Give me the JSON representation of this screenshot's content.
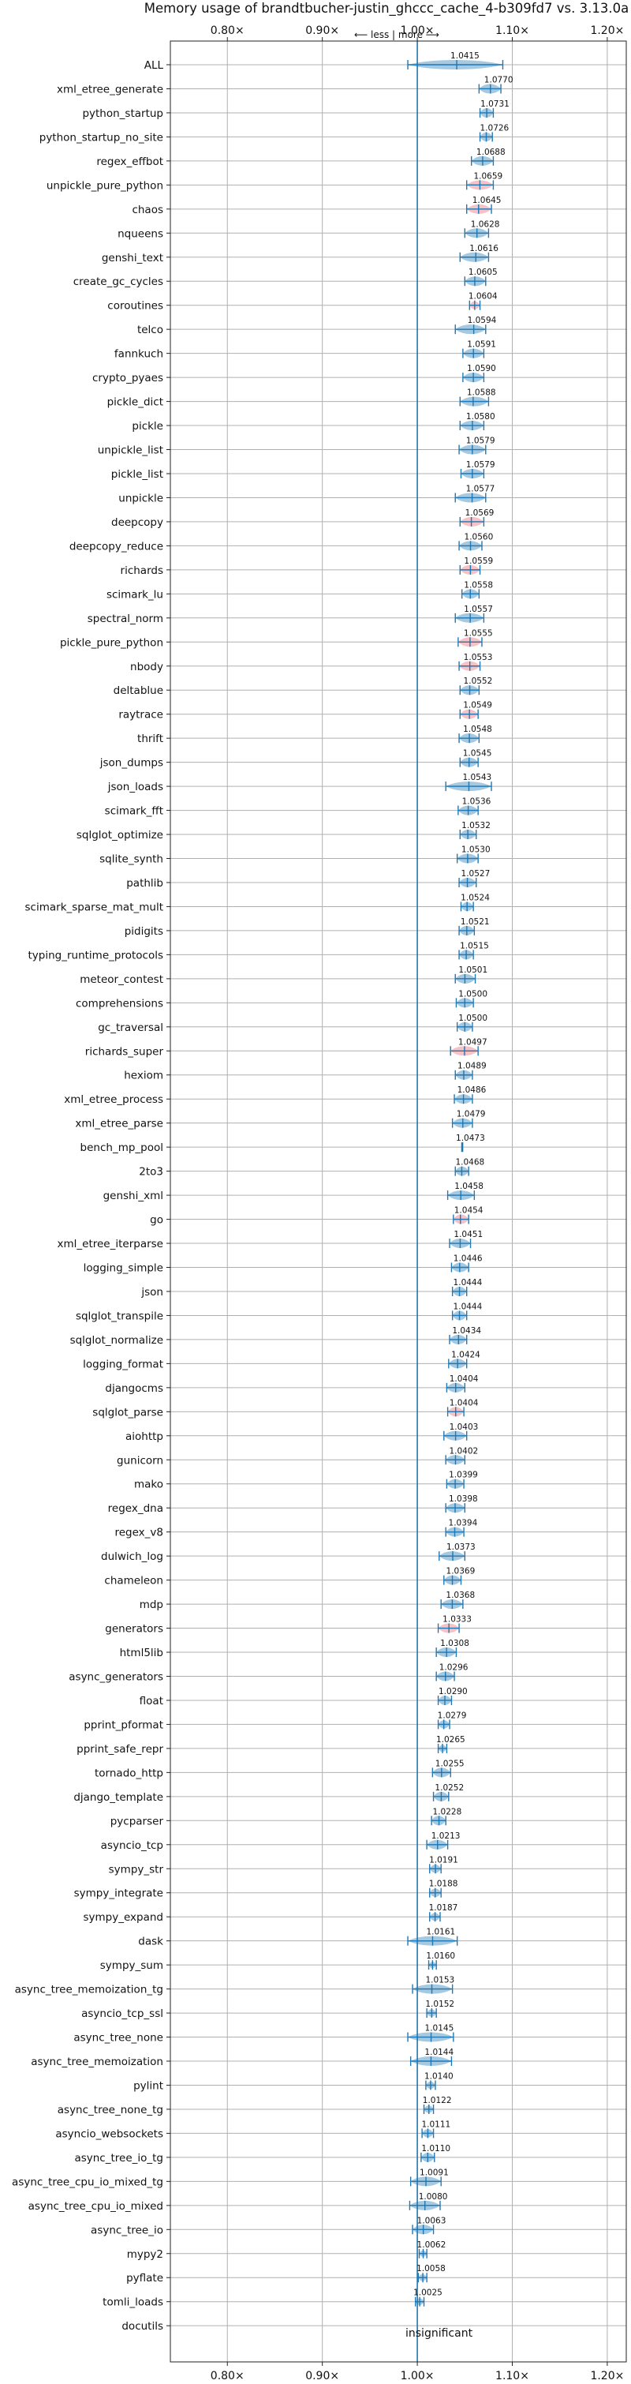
{
  "chart_data": {
    "type": "violin",
    "title": "Memory usage of brandtbucher-justin_ghccc_cache_4-b309fd7 vs. 3.13.0a",
    "direction_label": "⟵ less | more ⟶",
    "xlim": [
      0.74,
      1.22
    ],
    "xticks": [
      0.8,
      0.9,
      1.0,
      1.1,
      1.2
    ],
    "xtick_labels": [
      "0.80×",
      "0.90×",
      "1.00×",
      "1.10×",
      "1.20×"
    ],
    "reference_x": 1.0,
    "grid": true,
    "insignificant_label": "insignificant",
    "colors": {
      "normal": "#1f77b4",
      "highlight": "#e8666e",
      "reference": "#1f77b4"
    },
    "benchmarks": [
      {
        "name": "ALL",
        "value_label": "1.0415",
        "center": 1.0415,
        "lo": 0.99,
        "hi": 1.09,
        "highlight": false
      },
      {
        "name": "xml_etree_generate",
        "value_label": "1.0770",
        "center": 1.077,
        "lo": 1.065,
        "hi": 1.088,
        "highlight": false
      },
      {
        "name": "python_startup",
        "value_label": "1.0731",
        "center": 1.0731,
        "lo": 1.066,
        "hi": 1.08,
        "highlight": false
      },
      {
        "name": "python_startup_no_site",
        "value_label": "1.0726",
        "center": 1.0726,
        "lo": 1.066,
        "hi": 1.079,
        "highlight": false
      },
      {
        "name": "regex_effbot",
        "value_label": "1.0688",
        "center": 1.0688,
        "lo": 1.057,
        "hi": 1.08,
        "highlight": false
      },
      {
        "name": "unpickle_pure_python",
        "value_label": "1.0659",
        "center": 1.0659,
        "lo": 1.052,
        "hi": 1.08,
        "highlight": true
      },
      {
        "name": "chaos",
        "value_label": "1.0645",
        "center": 1.0645,
        "lo": 1.052,
        "hi": 1.078,
        "highlight": true
      },
      {
        "name": "nqueens",
        "value_label": "1.0628",
        "center": 1.0628,
        "lo": 1.05,
        "hi": 1.075,
        "highlight": false
      },
      {
        "name": "genshi_text",
        "value_label": "1.0616",
        "center": 1.0616,
        "lo": 1.045,
        "hi": 1.075,
        "highlight": false
      },
      {
        "name": "create_gc_cycles",
        "value_label": "1.0605",
        "center": 1.0605,
        "lo": 1.05,
        "hi": 1.072,
        "highlight": false
      },
      {
        "name": "coroutines",
        "value_label": "1.0604",
        "center": 1.0604,
        "lo": 1.055,
        "hi": 1.066,
        "highlight": true
      },
      {
        "name": "telco",
        "value_label": "1.0594",
        "center": 1.0594,
        "lo": 1.04,
        "hi": 1.072,
        "highlight": false
      },
      {
        "name": "fannkuch",
        "value_label": "1.0591",
        "center": 1.0591,
        "lo": 1.048,
        "hi": 1.07,
        "highlight": false
      },
      {
        "name": "crypto_pyaes",
        "value_label": "1.0590",
        "center": 1.059,
        "lo": 1.048,
        "hi": 1.07,
        "highlight": false
      },
      {
        "name": "pickle_dict",
        "value_label": "1.0588",
        "center": 1.0588,
        "lo": 1.045,
        "hi": 1.075,
        "highlight": false
      },
      {
        "name": "pickle",
        "value_label": "1.0580",
        "center": 1.058,
        "lo": 1.045,
        "hi": 1.07,
        "highlight": false
      },
      {
        "name": "unpickle_list",
        "value_label": "1.0579",
        "center": 1.0579,
        "lo": 1.044,
        "hi": 1.072,
        "highlight": false
      },
      {
        "name": "pickle_list",
        "value_label": "1.0579",
        "center": 1.0579,
        "lo": 1.046,
        "hi": 1.07,
        "highlight": false
      },
      {
        "name": "unpickle",
        "value_label": "1.0577",
        "center": 1.0577,
        "lo": 1.04,
        "hi": 1.072,
        "highlight": false
      },
      {
        "name": "deepcopy",
        "value_label": "1.0569",
        "center": 1.0569,
        "lo": 1.045,
        "hi": 1.07,
        "highlight": true
      },
      {
        "name": "deepcopy_reduce",
        "value_label": "1.0560",
        "center": 1.056,
        "lo": 1.044,
        "hi": 1.068,
        "highlight": false
      },
      {
        "name": "richards",
        "value_label": "1.0559",
        "center": 1.0559,
        "lo": 1.045,
        "hi": 1.066,
        "highlight": true
      },
      {
        "name": "scimark_lu",
        "value_label": "1.0558",
        "center": 1.0558,
        "lo": 1.047,
        "hi": 1.065,
        "highlight": false
      },
      {
        "name": "spectral_norm",
        "value_label": "1.0557",
        "center": 1.0557,
        "lo": 1.04,
        "hi": 1.07,
        "highlight": false
      },
      {
        "name": "pickle_pure_python",
        "value_label": "1.0555",
        "center": 1.0555,
        "lo": 1.043,
        "hi": 1.068,
        "highlight": true
      },
      {
        "name": "nbody",
        "value_label": "1.0553",
        "center": 1.0553,
        "lo": 1.044,
        "hi": 1.066,
        "highlight": true
      },
      {
        "name": "deltablue",
        "value_label": "1.0552",
        "center": 1.0552,
        "lo": 1.045,
        "hi": 1.065,
        "highlight": false
      },
      {
        "name": "raytrace",
        "value_label": "1.0549",
        "center": 1.0549,
        "lo": 1.045,
        "hi": 1.064,
        "highlight": true
      },
      {
        "name": "thrift",
        "value_label": "1.0548",
        "center": 1.0548,
        "lo": 1.044,
        "hi": 1.065,
        "highlight": false
      },
      {
        "name": "json_dumps",
        "value_label": "1.0545",
        "center": 1.0545,
        "lo": 1.045,
        "hi": 1.064,
        "highlight": false
      },
      {
        "name": "json_loads",
        "value_label": "1.0543",
        "center": 1.0543,
        "lo": 1.03,
        "hi": 1.078,
        "highlight": false
      },
      {
        "name": "scimark_fft",
        "value_label": "1.0536",
        "center": 1.0536,
        "lo": 1.043,
        "hi": 1.064,
        "highlight": false
      },
      {
        "name": "sqlglot_optimize",
        "value_label": "1.0532",
        "center": 1.0532,
        "lo": 1.045,
        "hi": 1.062,
        "highlight": false
      },
      {
        "name": "sqlite_synth",
        "value_label": "1.0530",
        "center": 1.053,
        "lo": 1.042,
        "hi": 1.064,
        "highlight": false
      },
      {
        "name": "pathlib",
        "value_label": "1.0527",
        "center": 1.0527,
        "lo": 1.044,
        "hi": 1.062,
        "highlight": false
      },
      {
        "name": "scimark_sparse_mat_mult",
        "value_label": "1.0524",
        "center": 1.0524,
        "lo": 1.046,
        "hi": 1.059,
        "highlight": false
      },
      {
        "name": "pidigits",
        "value_label": "1.0521",
        "center": 1.0521,
        "lo": 1.044,
        "hi": 1.06,
        "highlight": false
      },
      {
        "name": "typing_runtime_protocols",
        "value_label": "1.0515",
        "center": 1.0515,
        "lo": 1.044,
        "hi": 1.059,
        "highlight": false
      },
      {
        "name": "meteor_contest",
        "value_label": "1.0501",
        "center": 1.0501,
        "lo": 1.04,
        "hi": 1.061,
        "highlight": false
      },
      {
        "name": "comprehensions",
        "value_label": "1.0500",
        "center": 1.05,
        "lo": 1.041,
        "hi": 1.059,
        "highlight": false
      },
      {
        "name": "gc_traversal",
        "value_label": "1.0500",
        "center": 1.05,
        "lo": 1.042,
        "hi": 1.058,
        "highlight": false
      },
      {
        "name": "richards_super",
        "value_label": "1.0497",
        "center": 1.0497,
        "lo": 1.035,
        "hi": 1.064,
        "highlight": true
      },
      {
        "name": "hexiom",
        "value_label": "1.0489",
        "center": 1.0489,
        "lo": 1.04,
        "hi": 1.058,
        "highlight": false
      },
      {
        "name": "xml_etree_process",
        "value_label": "1.0486",
        "center": 1.0486,
        "lo": 1.039,
        "hi": 1.058,
        "highlight": false
      },
      {
        "name": "xml_etree_parse",
        "value_label": "1.0479",
        "center": 1.0479,
        "lo": 1.037,
        "hi": 1.058,
        "highlight": false
      },
      {
        "name": "bench_mp_pool",
        "value_label": "1.0473",
        "center": 1.0473,
        "lo": 1.0468,
        "hi": 1.0478,
        "highlight": false
      },
      {
        "name": "2to3",
        "value_label": "1.0468",
        "center": 1.0468,
        "lo": 1.04,
        "hi": 1.054,
        "highlight": false
      },
      {
        "name": "genshi_xml",
        "value_label": "1.0458",
        "center": 1.0458,
        "lo": 1.032,
        "hi": 1.06,
        "highlight": false
      },
      {
        "name": "go",
        "value_label": "1.0454",
        "center": 1.0454,
        "lo": 1.038,
        "hi": 1.054,
        "highlight": true
      },
      {
        "name": "xml_etree_iterparse",
        "value_label": "1.0451",
        "center": 1.0451,
        "lo": 1.034,
        "hi": 1.056,
        "highlight": false
      },
      {
        "name": "logging_simple",
        "value_label": "1.0446",
        "center": 1.0446,
        "lo": 1.036,
        "hi": 1.054,
        "highlight": false
      },
      {
        "name": "json",
        "value_label": "1.0444",
        "center": 1.0444,
        "lo": 1.037,
        "hi": 1.052,
        "highlight": false
      },
      {
        "name": "sqlglot_transpile",
        "value_label": "1.0444",
        "center": 1.0444,
        "lo": 1.037,
        "hi": 1.052,
        "highlight": false
      },
      {
        "name": "sqlglot_normalize",
        "value_label": "1.0434",
        "center": 1.0434,
        "lo": 1.034,
        "hi": 1.052,
        "highlight": false
      },
      {
        "name": "logging_format",
        "value_label": "1.0424",
        "center": 1.0424,
        "lo": 1.033,
        "hi": 1.052,
        "highlight": false
      },
      {
        "name": "djangocms",
        "value_label": "1.0404",
        "center": 1.0404,
        "lo": 1.031,
        "hi": 1.05,
        "highlight": false
      },
      {
        "name": "sqlglot_parse",
        "value_label": "1.0404",
        "center": 1.0404,
        "lo": 1.032,
        "hi": 1.049,
        "highlight": true
      },
      {
        "name": "aiohttp",
        "value_label": "1.0403",
        "center": 1.0403,
        "lo": 1.028,
        "hi": 1.052,
        "highlight": false
      },
      {
        "name": "gunicorn",
        "value_label": "1.0402",
        "center": 1.0402,
        "lo": 1.03,
        "hi": 1.05,
        "highlight": false
      },
      {
        "name": "mako",
        "value_label": "1.0399",
        "center": 1.0399,
        "lo": 1.031,
        "hi": 1.049,
        "highlight": false
      },
      {
        "name": "regex_dna",
        "value_label": "1.0398",
        "center": 1.0398,
        "lo": 1.03,
        "hi": 1.05,
        "highlight": false
      },
      {
        "name": "regex_v8",
        "value_label": "1.0394",
        "center": 1.0394,
        "lo": 1.03,
        "hi": 1.049,
        "highlight": false
      },
      {
        "name": "dulwich_log",
        "value_label": "1.0373",
        "center": 1.0373,
        "lo": 1.023,
        "hi": 1.05,
        "highlight": false
      },
      {
        "name": "chameleon",
        "value_label": "1.0369",
        "center": 1.0369,
        "lo": 1.028,
        "hi": 1.046,
        "highlight": false
      },
      {
        "name": "mdp",
        "value_label": "1.0368",
        "center": 1.0368,
        "lo": 1.025,
        "hi": 1.048,
        "highlight": false
      },
      {
        "name": "generators",
        "value_label": "1.0333",
        "center": 1.0333,
        "lo": 1.022,
        "hi": 1.044,
        "highlight": true
      },
      {
        "name": "html5lib",
        "value_label": "1.0308",
        "center": 1.0308,
        "lo": 1.02,
        "hi": 1.041,
        "highlight": false
      },
      {
        "name": "async_generators",
        "value_label": "1.0296",
        "center": 1.0296,
        "lo": 1.02,
        "hi": 1.039,
        "highlight": false
      },
      {
        "name": "float",
        "value_label": "1.0290",
        "center": 1.029,
        "lo": 1.022,
        "hi": 1.036,
        "highlight": false
      },
      {
        "name": "pprint_pformat",
        "value_label": "1.0279",
        "center": 1.0279,
        "lo": 1.022,
        "hi": 1.034,
        "highlight": false
      },
      {
        "name": "pprint_safe_repr",
        "value_label": "1.0265",
        "center": 1.0265,
        "lo": 1.022,
        "hi": 1.031,
        "highlight": false
      },
      {
        "name": "tornado_http",
        "value_label": "1.0255",
        "center": 1.0255,
        "lo": 1.016,
        "hi": 1.035,
        "highlight": false
      },
      {
        "name": "django_template",
        "value_label": "1.0252",
        "center": 1.0252,
        "lo": 1.017,
        "hi": 1.033,
        "highlight": false
      },
      {
        "name": "pycparser",
        "value_label": "1.0228",
        "center": 1.0228,
        "lo": 1.015,
        "hi": 1.03,
        "highlight": false
      },
      {
        "name": "asyncio_tcp",
        "value_label": "1.0213",
        "center": 1.0213,
        "lo": 1.01,
        "hi": 1.032,
        "highlight": false
      },
      {
        "name": "sympy_str",
        "value_label": "1.0191",
        "center": 1.0191,
        "lo": 1.013,
        "hi": 1.025,
        "highlight": false
      },
      {
        "name": "sympy_integrate",
        "value_label": "1.0188",
        "center": 1.0188,
        "lo": 1.013,
        "hi": 1.025,
        "highlight": false
      },
      {
        "name": "sympy_expand",
        "value_label": "1.0187",
        "center": 1.0187,
        "lo": 1.013,
        "hi": 1.024,
        "highlight": false
      },
      {
        "name": "dask",
        "value_label": "1.0161",
        "center": 1.0161,
        "lo": 0.99,
        "hi": 1.042,
        "highlight": false
      },
      {
        "name": "sympy_sum",
        "value_label": "1.0160",
        "center": 1.016,
        "lo": 1.012,
        "hi": 1.02,
        "highlight": false
      },
      {
        "name": "async_tree_memoization_tg",
        "value_label": "1.0153",
        "center": 1.0153,
        "lo": 0.995,
        "hi": 1.037,
        "highlight": false
      },
      {
        "name": "asyncio_tcp_ssl",
        "value_label": "1.0152",
        "center": 1.0152,
        "lo": 1.01,
        "hi": 1.02,
        "highlight": false
      },
      {
        "name": "async_tree_none",
        "value_label": "1.0145",
        "center": 1.0145,
        "lo": 0.99,
        "hi": 1.038,
        "highlight": false
      },
      {
        "name": "async_tree_memoization",
        "value_label": "1.0144",
        "center": 1.0144,
        "lo": 0.993,
        "hi": 1.036,
        "highlight": false
      },
      {
        "name": "pylint",
        "value_label": "1.0140",
        "center": 1.014,
        "lo": 1.009,
        "hi": 1.019,
        "highlight": false
      },
      {
        "name": "async_tree_none_tg",
        "value_label": "1.0122",
        "center": 1.0122,
        "lo": 1.007,
        "hi": 1.017,
        "highlight": false
      },
      {
        "name": "asyncio_websockets",
        "value_label": "1.0111",
        "center": 1.0111,
        "lo": 1.005,
        "hi": 1.017,
        "highlight": false
      },
      {
        "name": "async_tree_io_tg",
        "value_label": "1.0110",
        "center": 1.011,
        "lo": 1.004,
        "hi": 1.018,
        "highlight": false
      },
      {
        "name": "async_tree_cpu_io_mixed_tg",
        "value_label": "1.0091",
        "center": 1.0091,
        "lo": 0.993,
        "hi": 1.025,
        "highlight": false
      },
      {
        "name": "async_tree_cpu_io_mixed",
        "value_label": "1.0080",
        "center": 1.008,
        "lo": 0.992,
        "hi": 1.024,
        "highlight": false
      },
      {
        "name": "async_tree_io",
        "value_label": "1.0063",
        "center": 1.0063,
        "lo": 0.995,
        "hi": 1.017,
        "highlight": false
      },
      {
        "name": "mypy2",
        "value_label": "1.0062",
        "center": 1.0062,
        "lo": 1.002,
        "hi": 1.01,
        "highlight": false
      },
      {
        "name": "pyflate",
        "value_label": "1.0058",
        "center": 1.0058,
        "lo": 1.001,
        "hi": 1.01,
        "highlight": false
      },
      {
        "name": "tomli_loads",
        "value_label": "1.0025",
        "center": 1.0025,
        "lo": 0.998,
        "hi": 1.007,
        "highlight": false
      },
      {
        "name": "docutils",
        "value_label": "",
        "center": 1.0,
        "lo": 1.0,
        "hi": 1.0,
        "highlight": false
      }
    ]
  }
}
